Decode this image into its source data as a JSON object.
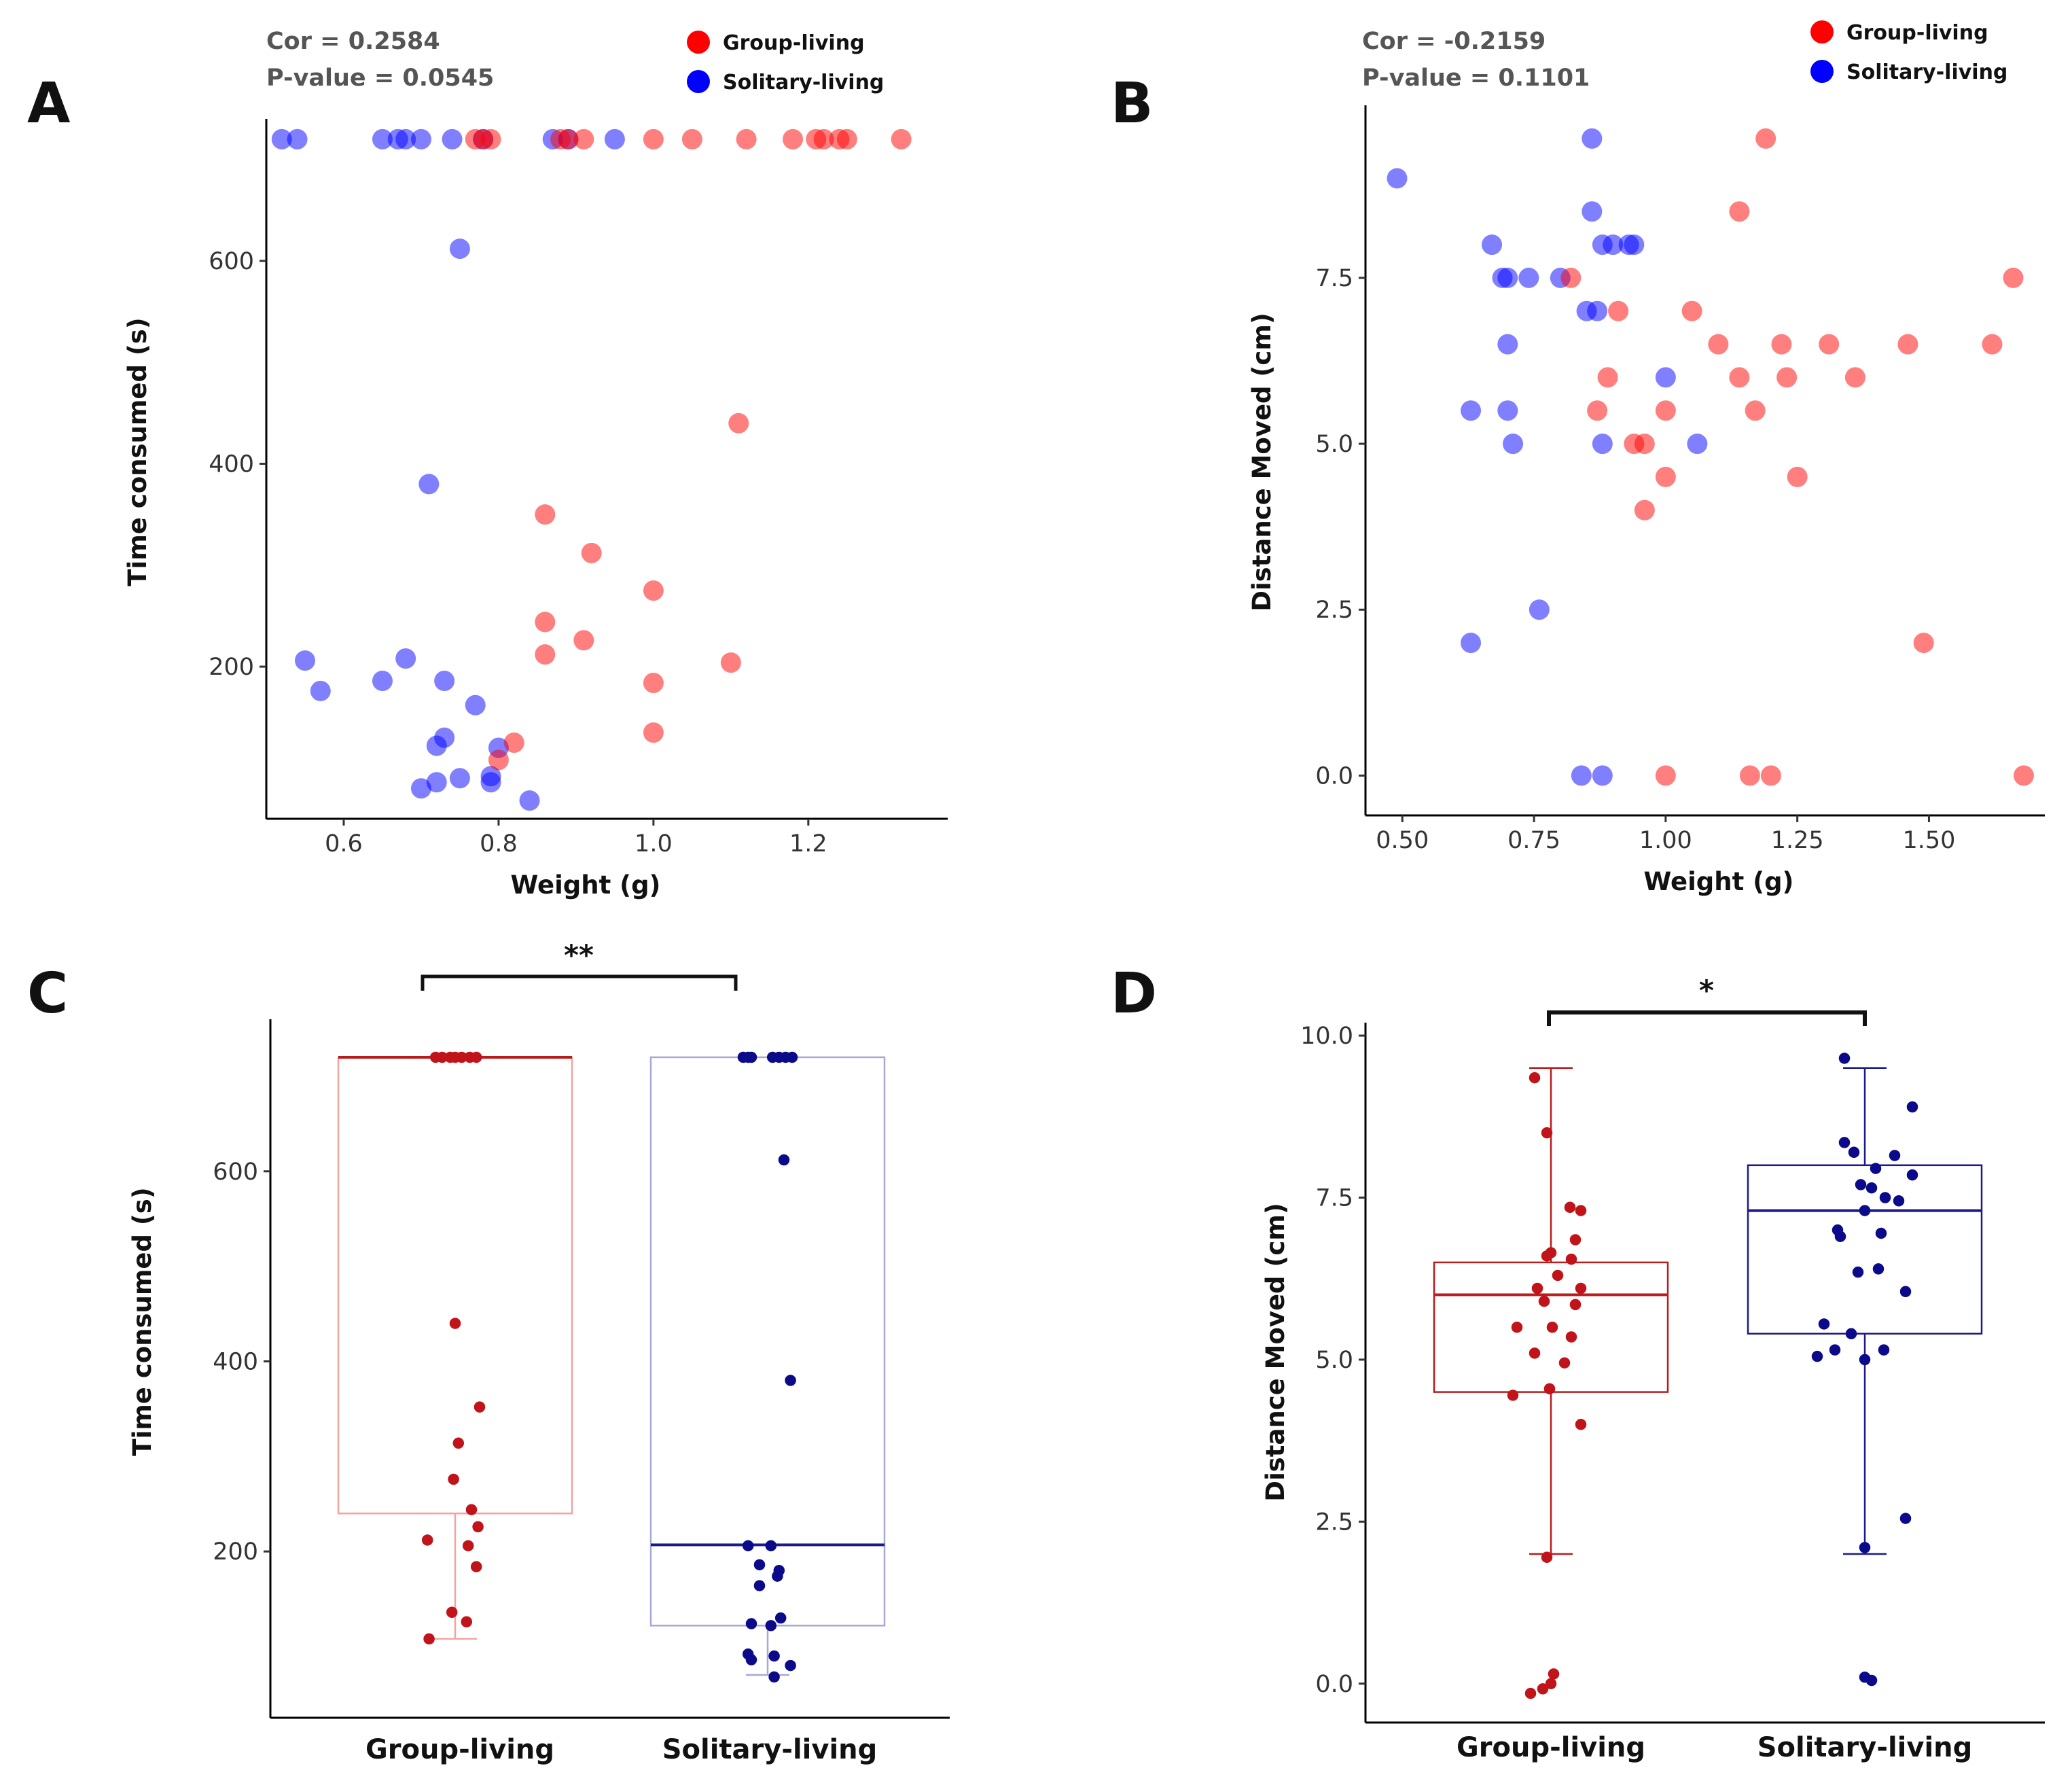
{
  "colors": {
    "group": "#ff0000",
    "solitary": "#0000ff",
    "group_box": "#b81c1c",
    "group_box_light": "#f4a3a3",
    "solitary_box": "#1a1a8c",
    "solitary_box_light": "#a7a7d8",
    "group_pt": "#c0141a",
    "solitary_pt": "#0a0a8a"
  },
  "chart_data": [
    {
      "panel": "A",
      "type": "scatter",
      "xlabel": "Weight (g)",
      "ylabel": "Time consumed (s)",
      "xlim": [
        0.5,
        1.38
      ],
      "ylim": [
        50,
        740
      ],
      "xticks": [
        {
          "value": 0.6,
          "label": "0.6"
        },
        {
          "value": 0.8,
          "label": "0.8"
        },
        {
          "value": 1.0,
          "label": "1.0"
        },
        {
          "value": 1.2,
          "label": "1.2"
        }
      ],
      "yticks": [
        {
          "value": 200,
          "label": "200"
        },
        {
          "value": 400,
          "label": "400"
        },
        {
          "value": 600,
          "label": "600"
        }
      ],
      "cor_text": "Cor = 0.2584",
      "p_text": "P-value =  0.0545",
      "legend": [
        "Group-living",
        "Solitary-living"
      ],
      "series": [
        {
          "name": "Solitary-living",
          "color": "solitary",
          "points": [
            [
              0.52,
              720
            ],
            [
              0.54,
              720
            ],
            [
              0.65,
              720
            ],
            [
              0.67,
              720
            ],
            [
              0.68,
              720
            ],
            [
              0.7,
              720
            ],
            [
              0.74,
              720
            ],
            [
              0.78,
              720
            ],
            [
              0.87,
              720
            ],
            [
              0.89,
              720
            ],
            [
              0.95,
              720
            ],
            [
              0.75,
              612
            ],
            [
              0.71,
              380
            ],
            [
              0.55,
              206
            ],
            [
              0.57,
              176
            ],
            [
              0.65,
              186
            ],
            [
              0.68,
              208
            ],
            [
              0.73,
              186
            ],
            [
              0.77,
              162
            ],
            [
              0.72,
              122
            ],
            [
              0.73,
              130
            ],
            [
              0.8,
              120
            ],
            [
              0.7,
              80
            ],
            [
              0.72,
              86
            ],
            [
              0.75,
              90
            ],
            [
              0.79,
              92
            ],
            [
              0.79,
              86
            ],
            [
              0.84,
              68
            ]
          ]
        },
        {
          "name": "Group-living",
          "color": "group",
          "points": [
            [
              0.77,
              720
            ],
            [
              0.78,
              720
            ],
            [
              0.79,
              720
            ],
            [
              0.88,
              720
            ],
            [
              0.89,
              720
            ],
            [
              0.91,
              720
            ],
            [
              1.0,
              720
            ],
            [
              1.05,
              720
            ],
            [
              1.12,
              720
            ],
            [
              1.18,
              720
            ],
            [
              1.21,
              720
            ],
            [
              1.22,
              720
            ],
            [
              1.24,
              720
            ],
            [
              1.25,
              720
            ],
            [
              1.32,
              720
            ],
            [
              1.11,
              440
            ],
            [
              0.86,
              350
            ],
            [
              0.92,
              312
            ],
            [
              1.0,
              275
            ],
            [
              0.86,
              244
            ],
            [
              0.91,
              226
            ],
            [
              0.86,
              212
            ],
            [
              1.1,
              204
            ],
            [
              1.0,
              184
            ],
            [
              1.0,
              135
            ],
            [
              0.82,
              125
            ],
            [
              0.8,
              108
            ]
          ]
        }
      ]
    },
    {
      "panel": "B",
      "type": "scatter",
      "xlabel": "Weight (g)",
      "ylabel": "Distance Moved (cm)",
      "xlim": [
        0.43,
        1.72
      ],
      "ylim": [
        -0.6,
        10.1
      ],
      "xticks": [
        {
          "value": 0.5,
          "label": "0.50"
        },
        {
          "value": 0.75,
          "label": "0.75"
        },
        {
          "value": 1.0,
          "label": "1.00"
        },
        {
          "value": 1.25,
          "label": "1.25"
        },
        {
          "value": 1.5,
          "label": "1.50"
        }
      ],
      "yticks": [
        {
          "value": 0,
          "label": "0.0"
        },
        {
          "value": 2.5,
          "label": "2.5"
        },
        {
          "value": 5,
          "label": "5.0"
        },
        {
          "value": 7.5,
          "label": "7.5"
        }
      ],
      "cor_text": "Cor = -0.2159",
      "p_text": "P-value =  0.1101",
      "legend": [
        "Group-living",
        "Solitary-living"
      ],
      "series": [
        {
          "name": "Solitary-living",
          "color": "solitary",
          "points": [
            [
              0.49,
              9.0
            ],
            [
              0.86,
              9.6
            ],
            [
              0.86,
              8.5
            ],
            [
              0.67,
              8.0
            ],
            [
              0.88,
              8.0
            ],
            [
              0.9,
              8.0
            ],
            [
              0.93,
              8.0
            ],
            [
              0.94,
              8.0
            ],
            [
              0.69,
              7.5
            ],
            [
              0.7,
              7.5
            ],
            [
              0.74,
              7.5
            ],
            [
              0.8,
              7.5
            ],
            [
              0.85,
              7.0
            ],
            [
              0.87,
              7.0
            ],
            [
              0.7,
              6.5
            ],
            [
              1.0,
              6.0
            ],
            [
              0.63,
              5.5
            ],
            [
              0.7,
              5.5
            ],
            [
              0.71,
              5.0
            ],
            [
              0.88,
              5.0
            ],
            [
              1.06,
              5.0
            ],
            [
              0.76,
              2.5
            ],
            [
              0.63,
              2.0
            ],
            [
              0.84,
              0.0
            ],
            [
              0.88,
              0.0
            ]
          ]
        },
        {
          "name": "Group-living",
          "color": "group",
          "points": [
            [
              1.19,
              9.6
            ],
            [
              1.14,
              8.5
            ],
            [
              0.82,
              7.5
            ],
            [
              1.66,
              7.5
            ],
            [
              0.91,
              7.0
            ],
            [
              1.05,
              7.0
            ],
            [
              1.1,
              6.5
            ],
            [
              1.22,
              6.5
            ],
            [
              1.31,
              6.5
            ],
            [
              1.46,
              6.5
            ],
            [
              1.62,
              6.5
            ],
            [
              0.89,
              6.0
            ],
            [
              1.14,
              6.0
            ],
            [
              1.23,
              6.0
            ],
            [
              1.36,
              6.0
            ],
            [
              0.87,
              5.5
            ],
            [
              1.0,
              5.5
            ],
            [
              1.17,
              5.5
            ],
            [
              0.94,
              5.0
            ],
            [
              0.96,
              5.0
            ],
            [
              1.0,
              4.5
            ],
            [
              1.25,
              4.5
            ],
            [
              0.96,
              4.0
            ],
            [
              1.49,
              2.0
            ],
            [
              1.0,
              0.0
            ],
            [
              1.16,
              0.0
            ],
            [
              1.2,
              0.0
            ],
            [
              1.68,
              0.0
            ]
          ]
        }
      ]
    },
    {
      "panel": "C",
      "type": "box",
      "ylabel": "Time consumed (s)",
      "categories": [
        "Group-living",
        "Solitary-living"
      ],
      "ylim": [
        25,
        760
      ],
      "yticks": [
        {
          "value": 200,
          "label": "200"
        },
        {
          "value": 400,
          "label": "400"
        },
        {
          "value": 600,
          "label": "600"
        }
      ],
      "significance": "**",
      "boxes": [
        {
          "name": "Group-living",
          "whisker_low": 108,
          "q1": 240,
          "median": 720,
          "q3": 720,
          "whisker_high": 720,
          "points": [
            [
              -0.12,
              720
            ],
            [
              -0.08,
              720
            ],
            [
              -0.03,
              720
            ],
            [
              0.0,
              720
            ],
            [
              0.04,
              720
            ],
            [
              0.09,
              720
            ],
            [
              0.13,
              720
            ],
            [
              0.0,
              440
            ],
            [
              0.15,
              352
            ],
            [
              0.02,
              314
            ],
            [
              -0.01,
              276
            ],
            [
              0.1,
              244
            ],
            [
              0.14,
              226
            ],
            [
              0.08,
              206
            ],
            [
              -0.17,
              212
            ],
            [
              0.13,
              184
            ],
            [
              -0.02,
              136
            ],
            [
              0.07,
              126
            ],
            [
              -0.16,
              108
            ]
          ]
        },
        {
          "name": "Solitary-living",
          "whisker_low": 70,
          "q1": 122,
          "median": 207,
          "q3": 720,
          "whisker_high": 720,
          "points": [
            [
              -0.15,
              720
            ],
            [
              -0.12,
              720
            ],
            [
              -0.1,
              720
            ],
            [
              0.03,
              720
            ],
            [
              0.07,
              720
            ],
            [
              0.11,
              720
            ],
            [
              0.15,
              720
            ],
            [
              0.1,
              612
            ],
            [
              0.14,
              380
            ],
            [
              -0.12,
              206
            ],
            [
              0.02,
              206
            ],
            [
              -0.05,
              186
            ],
            [
              0.07,
              180
            ],
            [
              0.06,
              174
            ],
            [
              -0.05,
              164
            ],
            [
              0.08,
              130
            ],
            [
              -0.1,
              124
            ],
            [
              0.02,
              122
            ],
            [
              -0.12,
              92
            ],
            [
              -0.1,
              86
            ],
            [
              0.04,
              90
            ],
            [
              0.14,
              80
            ],
            [
              0.04,
              68
            ]
          ]
        }
      ]
    },
    {
      "panel": "D",
      "type": "box",
      "ylabel": "Distance Moved (cm)",
      "categories": [
        "Group-living",
        "Solitary-living"
      ],
      "ylim": [
        -0.6,
        10.2
      ],
      "yticks": [
        {
          "value": 0,
          "label": "0.0"
        },
        {
          "value": 2.5,
          "label": "2.5"
        },
        {
          "value": 5,
          "label": "5.0"
        },
        {
          "value": 7.5,
          "label": "7.5"
        },
        {
          "value": 10,
          "label": "10.0"
        }
      ],
      "significance": "*",
      "boxes": [
        {
          "name": "Group-living",
          "whisker_low": 2.0,
          "q1": 4.5,
          "median": 6.0,
          "q3": 6.5,
          "whisker_high": 9.5,
          "points": [
            [
              -0.12,
              9.35
            ],
            [
              -0.03,
              8.5
            ],
            [
              0.14,
              7.35
            ],
            [
              0.22,
              7.3
            ],
            [
              0.18,
              6.85
            ],
            [
              0.0,
              6.65
            ],
            [
              -0.03,
              6.6
            ],
            [
              0.15,
              6.55
            ],
            [
              0.05,
              6.3
            ],
            [
              -0.1,
              6.1
            ],
            [
              0.22,
              6.1
            ],
            [
              0.18,
              5.85
            ],
            [
              -0.05,
              5.9
            ],
            [
              0.15,
              5.35
            ],
            [
              -0.25,
              5.5
            ],
            [
              0.01,
              5.5
            ],
            [
              -0.12,
              5.1
            ],
            [
              0.1,
              4.95
            ],
            [
              -0.28,
              4.45
            ],
            [
              -0.01,
              4.55
            ],
            [
              0.22,
              4.0
            ],
            [
              -0.03,
              1.95
            ],
            [
              0.02,
              0.15
            ],
            [
              -0.15,
              -0.15
            ],
            [
              -0.06,
              -0.08
            ],
            [
              0.0,
              0.0
            ]
          ]
        },
        {
          "name": "Solitary-living",
          "whisker_low": 2.0,
          "q1": 5.4,
          "median": 7.3,
          "q3": 8.0,
          "whisker_high": 9.5,
          "points": [
            [
              -0.15,
              9.65
            ],
            [
              0.35,
              8.9
            ],
            [
              -0.15,
              8.35
            ],
            [
              -0.08,
              8.2
            ],
            [
              0.22,
              8.15
            ],
            [
              0.08,
              7.95
            ],
            [
              -0.03,
              7.7
            ],
            [
              0.05,
              7.65
            ],
            [
              0.25,
              7.45
            ],
            [
              0.35,
              7.85
            ],
            [
              0.15,
              7.5
            ],
            [
              0.0,
              7.3
            ],
            [
              -0.2,
              7.0
            ],
            [
              0.12,
              6.95
            ],
            [
              -0.18,
              6.9
            ],
            [
              -0.05,
              6.35
            ],
            [
              0.1,
              6.4
            ],
            [
              0.3,
              6.05
            ],
            [
              -0.3,
              5.55
            ],
            [
              -0.1,
              5.4
            ],
            [
              -0.22,
              5.15
            ],
            [
              -0.35,
              5.05
            ],
            [
              0.0,
              5.0
            ],
            [
              0.14,
              5.15
            ],
            [
              0.3,
              2.55
            ],
            [
              0.0,
              2.1
            ],
            [
              0.0,
              0.1
            ],
            [
              0.05,
              0.05
            ]
          ]
        }
      ]
    }
  ]
}
